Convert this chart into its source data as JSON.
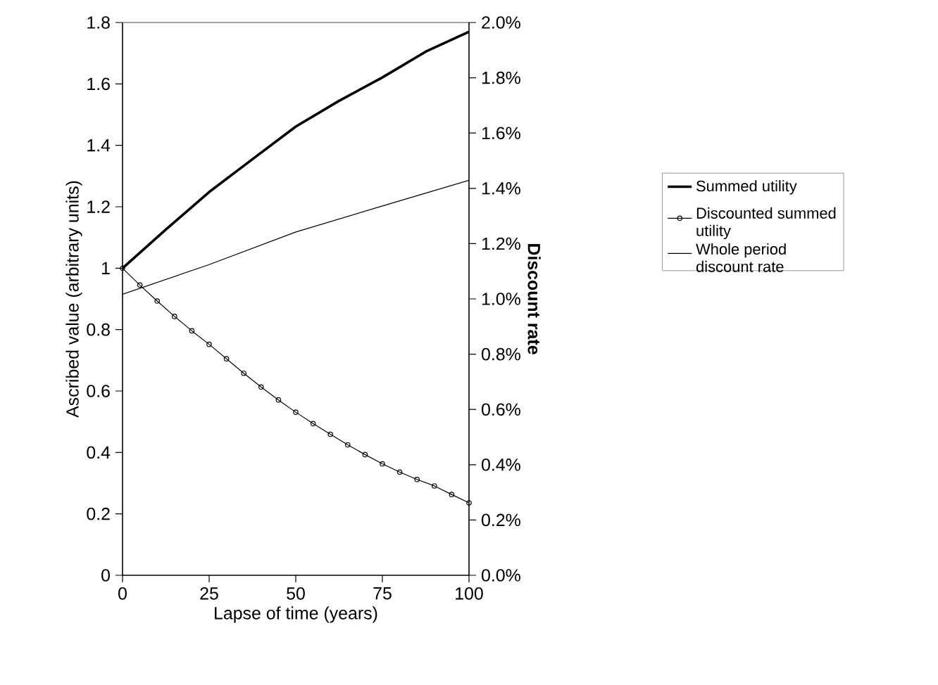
{
  "chart_data": {
    "type": "line",
    "xlabel": "Lapse of time (years)",
    "ylabel": "Ascribed value (arbitrary units)",
    "y2label": "Discount rate",
    "xlim": [
      0,
      100
    ],
    "xticks": [
      0,
      25,
      50,
      75,
      100
    ],
    "ylim": [
      0,
      1.8
    ],
    "yticks": [
      0,
      0.2,
      0.4,
      0.6,
      0.8,
      1,
      1.2,
      1.4,
      1.6,
      1.8
    ],
    "y2lim": [
      0,
      2
    ],
    "y2ticks": [
      {
        "value": 0,
        "label": "0.0%"
      },
      {
        "value": 0.2,
        "label": "0.2%"
      },
      {
        "value": 0.4,
        "label": "0.4%"
      },
      {
        "value": 0.6,
        "label": "0.6%"
      },
      {
        "value": 0.8,
        "label": "0.8%"
      },
      {
        "value": 1.0,
        "label": "1.0%"
      },
      {
        "value": 1.2,
        "label": "1.2%"
      },
      {
        "value": 1.4,
        "label": "1.4%"
      },
      {
        "value": 1.6,
        "label": "1.6%"
      },
      {
        "value": 1.8,
        "label": "1.8%"
      },
      {
        "value": 2.0,
        "label": "2.0%"
      }
    ],
    "legend": "right",
    "grid": false,
    "series": [
      {
        "name": "Summed utility",
        "color": "#000000",
        "marker": "none",
        "x": [
          0,
          12.5,
          25,
          37.5,
          50,
          62.5,
          75,
          87.5,
          100
        ],
        "values": [
          1.0,
          1.126,
          1.248,
          1.355,
          1.461,
          1.545,
          1.621,
          1.705,
          1.77
        ]
      },
      {
        "name": "Discounted summed utility",
        "color": "#000000",
        "marker": "circle",
        "x": [
          0,
          5,
          10,
          15,
          20,
          25,
          30,
          35,
          40,
          45,
          50,
          55,
          60,
          65,
          70,
          75,
          80,
          85,
          90,
          95,
          100
        ],
        "values": [
          1.0,
          0.945,
          0.893,
          0.843,
          0.796,
          0.752,
          0.705,
          0.658,
          0.613,
          0.571,
          0.531,
          0.494,
          0.459,
          0.425,
          0.393,
          0.363,
          0.336,
          0.312,
          0.291,
          0.263,
          0.236
        ]
      },
      {
        "name": "Whole period discount rate",
        "color": "#000000",
        "marker": "none",
        "axis": "y2",
        "x": [
          0,
          25,
          50,
          75,
          100
        ],
        "values": [
          1.017,
          1.124,
          1.242,
          1.336,
          1.429
        ]
      }
    ]
  }
}
